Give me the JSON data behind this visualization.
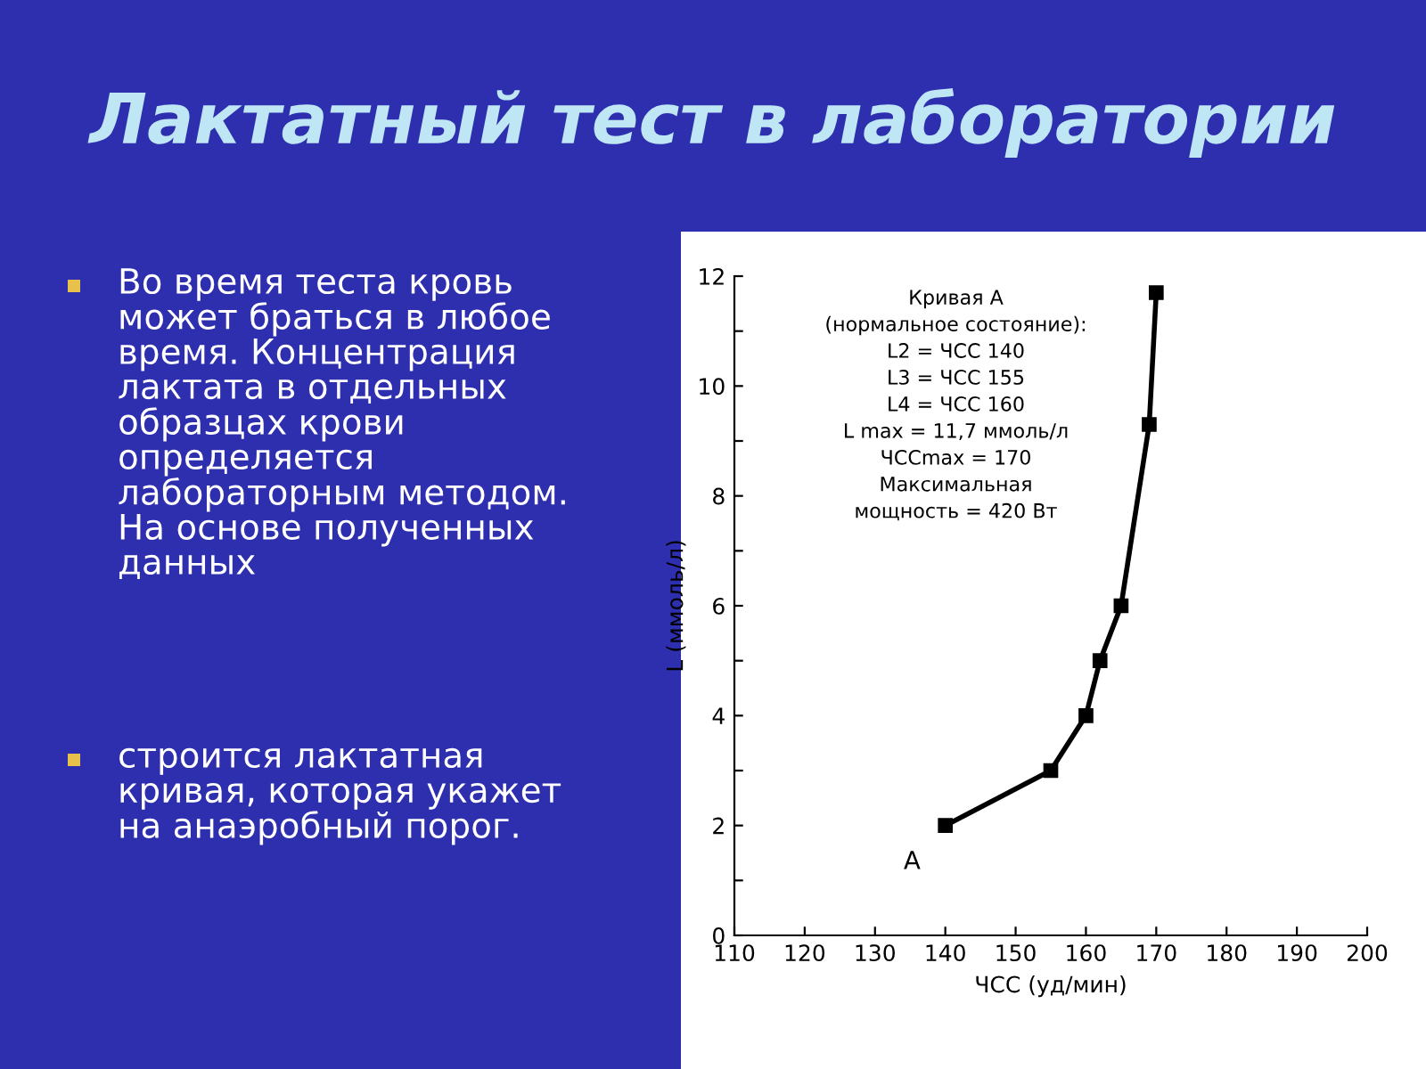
{
  "chart_data": {
    "type": "line",
    "title": "Лактатный тест в лаборатории",
    "xlabel": "ЧСС (уд/мин)",
    "ylabel": "L (ммоль/л)",
    "series": [
      {
        "color": "#000000",
        "x": [
          140,
          155,
          160,
          162,
          165,
          169,
          170
        ],
        "values": [
          2,
          3,
          4,
          5,
          6,
          9.3,
          11.7
        ]
      }
    ],
    "marker": "square",
    "line_style": "solid",
    "grid": false,
    "legend": false,
    "xlim": [
      110,
      200
    ],
    "xticks": [
      110,
      120,
      130,
      140,
      150,
      160,
      170,
      180,
      190,
      200
    ],
    "ylim": [
      0,
      12
    ],
    "yticks": [
      0,
      {
        "value": 1,
        "label": null
      },
      2,
      {
        "value": 3,
        "label": null
      },
      4,
      {
        "value": 5,
        "label": null
      },
      6,
      {
        "value": 7,
        "label": null
      },
      8,
      {
        "value": 9,
        "label": null
      },
      10,
      {
        "value": 11,
        "label": null
      },
      12
    ],
    "annotations": [
      {
        "text": "A",
        "x": 140,
        "y": 2
      },
      "Кривая A\n(нормальное состояние):\nL2 = ЧСС 140\nL3 = ЧСС 155\nL4 = ЧСС 160\nL max = 11,7 ммоль/л\nЧССmax = 170\nМаксимальная\nмощность = 420 Вт",
      "Во время теста кровь\nможет браться в любое\nвремя. Концентрация\nлактата в отдельных\nобразцах крови\nопределяется\nлабораторным методом.\nНа основе полученных\nданных",
      "строится лактатная\nкривая, которая укажет\nна анаэробный порог."
    ]
  }
}
